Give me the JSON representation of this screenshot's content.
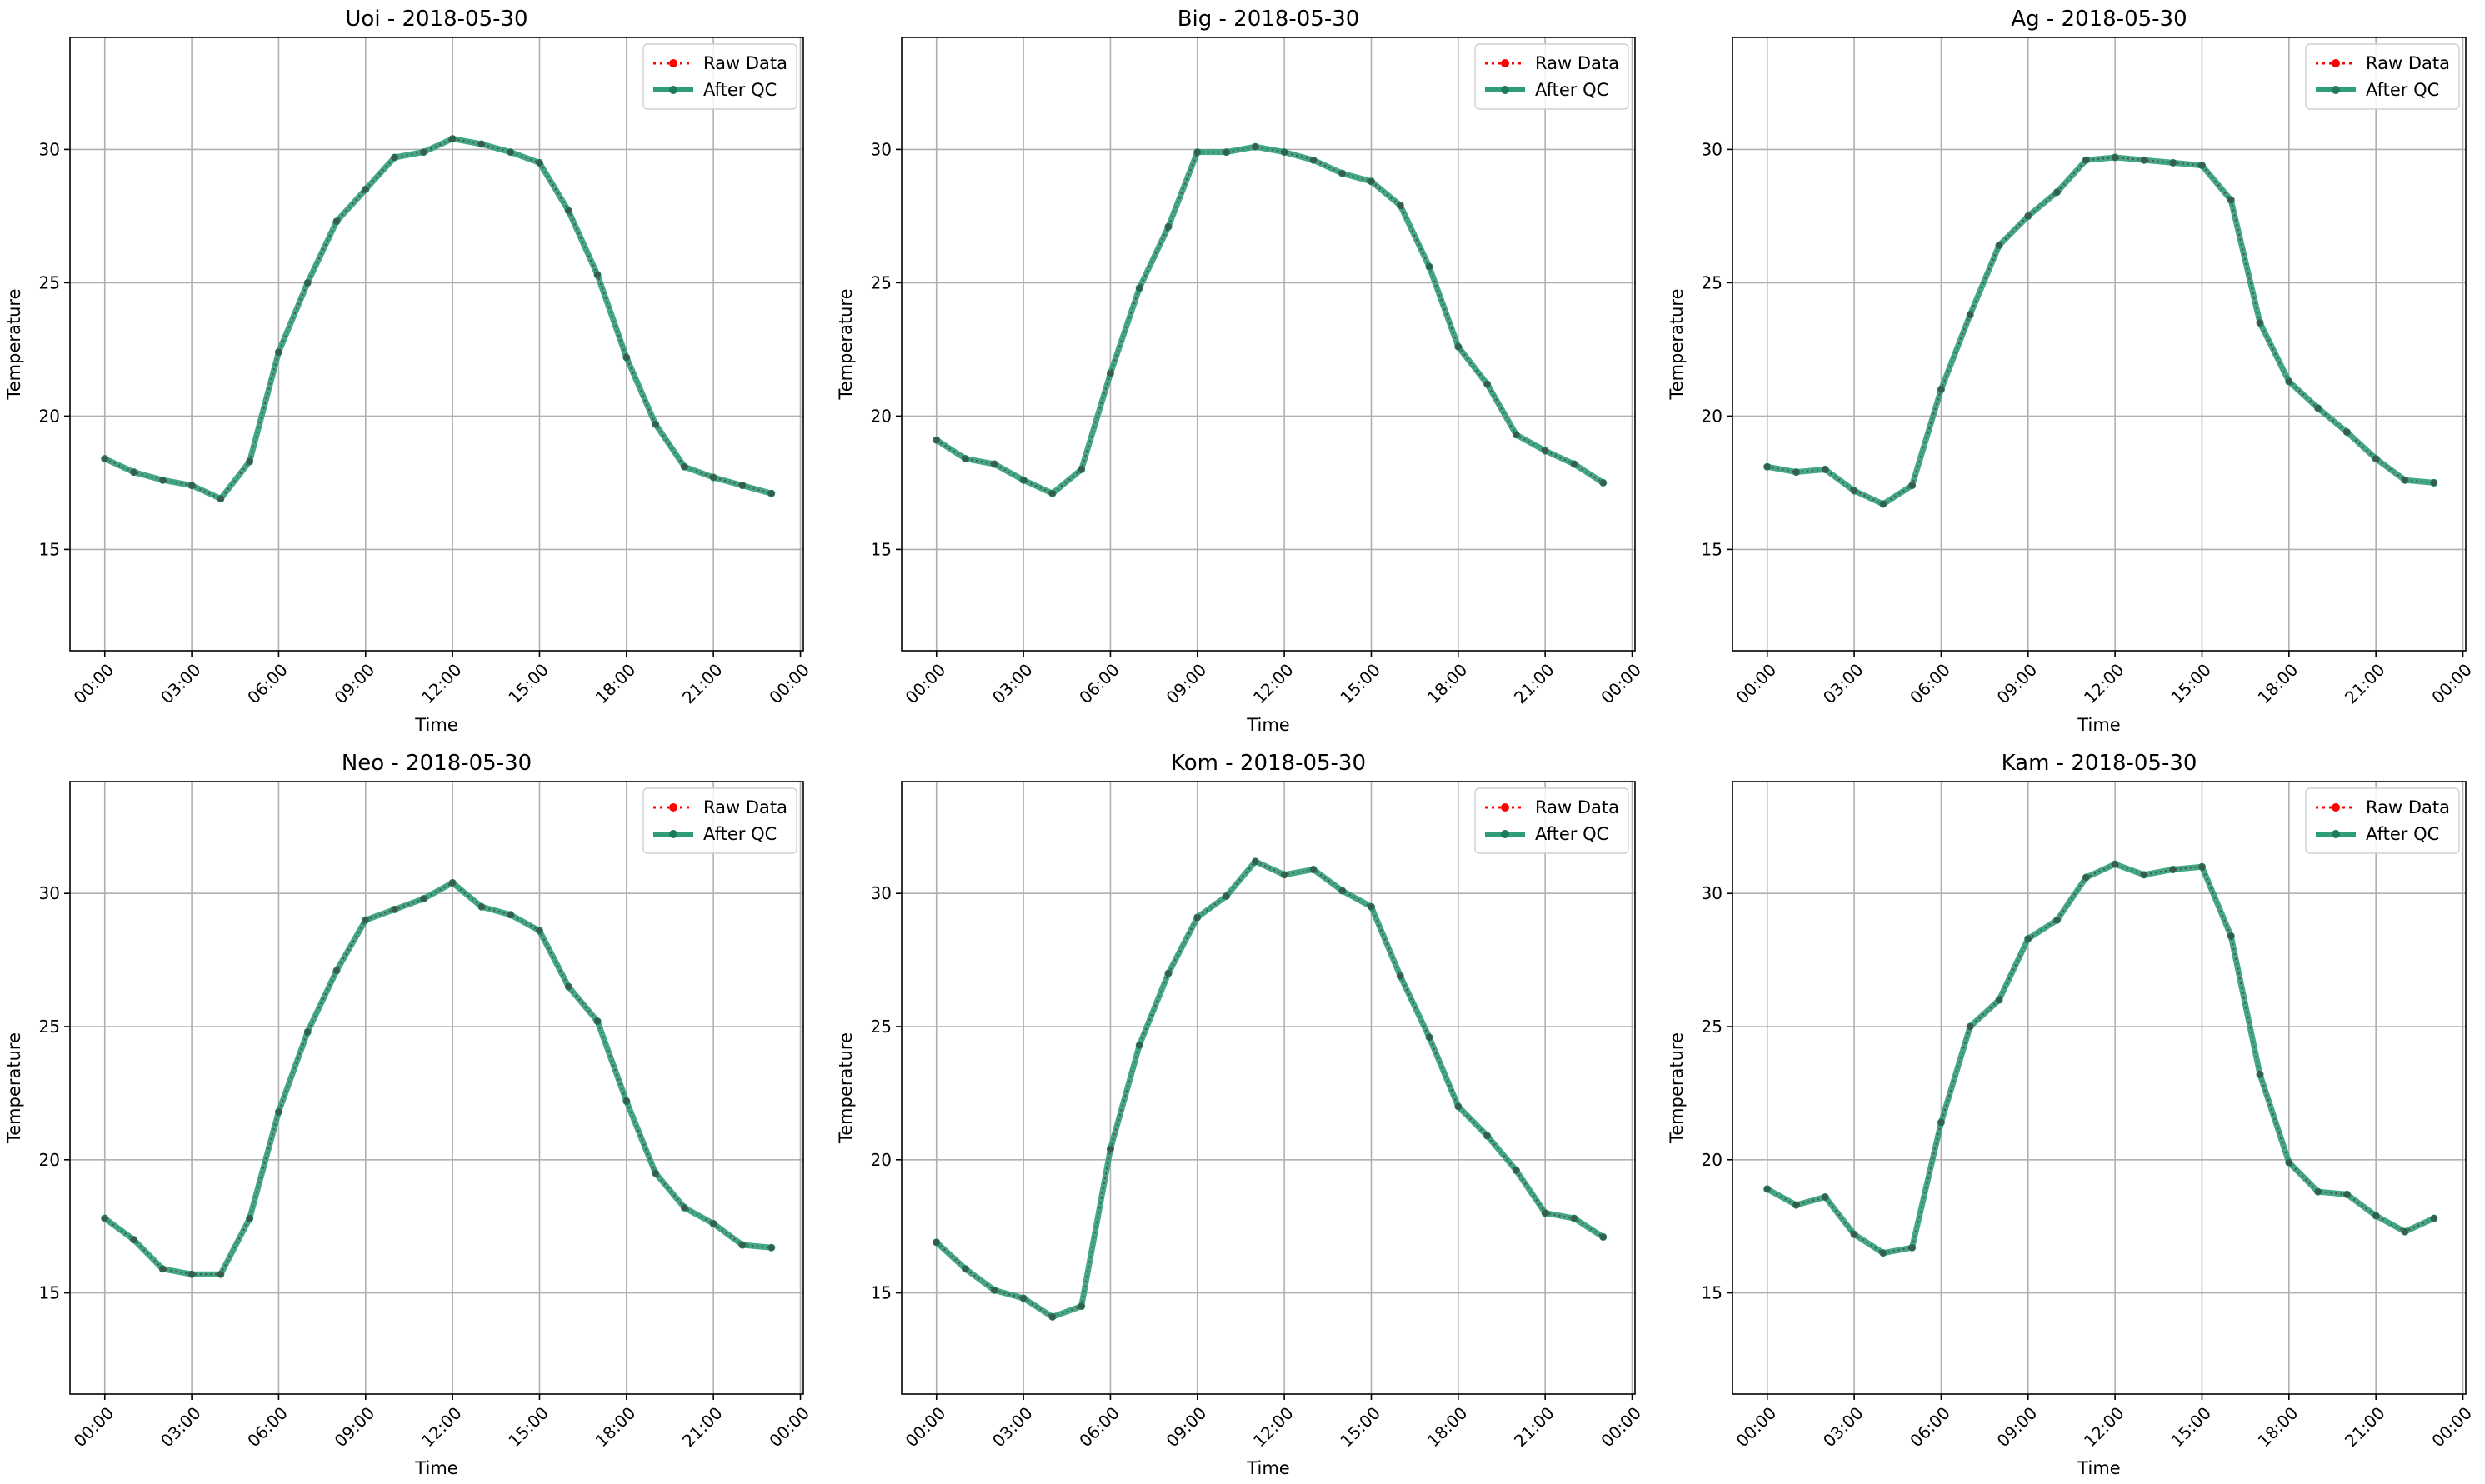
{
  "chart_data": [
    {
      "type": "line",
      "title": "Uoi - 2018-05-30",
      "xlabel": "Time",
      "ylabel": "Temperature",
      "x_ticks": [
        "00:00",
        "03:00",
        "06:00",
        "09:00",
        "12:00",
        "15:00",
        "18:00",
        "21:00",
        "00:00"
      ],
      "y_ticks": [
        15,
        20,
        25,
        30
      ],
      "ylim": [
        11.2,
        34.2
      ],
      "xlim_hours": [
        -1.2,
        24.1
      ],
      "grid": true,
      "legend_position": "upper-right",
      "hours": [
        0,
        1,
        2,
        3,
        4,
        5,
        6,
        7,
        8,
        9,
        10,
        11,
        12,
        13,
        14,
        15,
        16,
        17,
        18,
        19,
        20,
        21,
        22,
        23
      ],
      "series": [
        {
          "name": "Raw Data",
          "style": "dotted-markers",
          "color": "#ff0000",
          "values": [
            18.4,
            17.9,
            17.6,
            17.4,
            16.9,
            18.3,
            22.4,
            25.0,
            27.3,
            28.5,
            29.7,
            29.9,
            30.4,
            30.2,
            29.9,
            29.5,
            27.7,
            25.3,
            22.2,
            19.7,
            18.1,
            17.7,
            17.4,
            17.1
          ]
        },
        {
          "name": "After QC",
          "style": "solid-markers",
          "color": "#2f9e78",
          "values": [
            18.4,
            17.9,
            17.6,
            17.4,
            16.9,
            18.3,
            22.4,
            25.0,
            27.3,
            28.5,
            29.7,
            29.9,
            30.4,
            30.2,
            29.9,
            29.5,
            27.7,
            25.3,
            22.2,
            19.7,
            18.1,
            17.7,
            17.4,
            17.1
          ]
        }
      ]
    },
    {
      "type": "line",
      "title": "Big - 2018-05-30",
      "xlabel": "Time",
      "ylabel": "Temperature",
      "x_ticks": [
        "00:00",
        "03:00",
        "06:00",
        "09:00",
        "12:00",
        "15:00",
        "18:00",
        "21:00",
        "00:00"
      ],
      "y_ticks": [
        15,
        20,
        25,
        30
      ],
      "ylim": [
        11.2,
        34.2
      ],
      "xlim_hours": [
        -1.2,
        24.1
      ],
      "grid": true,
      "legend_position": "upper-right",
      "hours": [
        0,
        1,
        2,
        3,
        4,
        5,
        6,
        7,
        8,
        9,
        10,
        11,
        12,
        13,
        14,
        15,
        16,
        17,
        18,
        19,
        20,
        21,
        22,
        23
      ],
      "series": [
        {
          "name": "Raw Data",
          "style": "dotted-markers",
          "color": "#ff0000",
          "values": [
            19.1,
            18.4,
            18.2,
            17.6,
            17.1,
            18.0,
            21.6,
            24.8,
            27.1,
            29.9,
            29.9,
            30.1,
            29.9,
            29.6,
            29.1,
            28.8,
            27.9,
            25.6,
            22.6,
            21.2,
            19.3,
            18.7,
            18.2,
            17.5
          ]
        },
        {
          "name": "After QC",
          "style": "solid-markers",
          "color": "#2f9e78",
          "values": [
            19.1,
            18.4,
            18.2,
            17.6,
            17.1,
            18.0,
            21.6,
            24.8,
            27.1,
            29.9,
            29.9,
            30.1,
            29.9,
            29.6,
            29.1,
            28.8,
            27.9,
            25.6,
            22.6,
            21.2,
            19.3,
            18.7,
            18.2,
            17.5
          ]
        }
      ]
    },
    {
      "type": "line",
      "title": "Ag - 2018-05-30",
      "xlabel": "Time",
      "ylabel": "Temperature",
      "x_ticks": [
        "00:00",
        "03:00",
        "06:00",
        "09:00",
        "12:00",
        "15:00",
        "18:00",
        "21:00",
        "00:00"
      ],
      "y_ticks": [
        15,
        20,
        25,
        30
      ],
      "ylim": [
        11.2,
        34.2
      ],
      "xlim_hours": [
        -1.2,
        24.1
      ],
      "grid": true,
      "legend_position": "upper-right",
      "hours": [
        0,
        1,
        2,
        3,
        4,
        5,
        6,
        7,
        8,
        9,
        10,
        11,
        12,
        13,
        14,
        15,
        16,
        17,
        18,
        19,
        20,
        21,
        22,
        23
      ],
      "series": [
        {
          "name": "Raw Data",
          "style": "dotted-markers",
          "color": "#ff0000",
          "values": [
            18.1,
            17.9,
            18.0,
            17.2,
            16.7,
            17.4,
            21.0,
            23.8,
            26.4,
            27.5,
            28.4,
            29.6,
            29.7,
            29.6,
            29.5,
            29.4,
            28.1,
            23.5,
            21.3,
            20.3,
            19.4,
            18.4,
            17.6,
            17.5
          ]
        },
        {
          "name": "After QC",
          "style": "solid-markers",
          "color": "#2f9e78",
          "values": [
            18.1,
            17.9,
            18.0,
            17.2,
            16.7,
            17.4,
            21.0,
            23.8,
            26.4,
            27.5,
            28.4,
            29.6,
            29.7,
            29.6,
            29.5,
            29.4,
            28.1,
            23.5,
            21.3,
            20.3,
            19.4,
            18.4,
            17.6,
            17.5
          ]
        }
      ]
    },
    {
      "type": "line",
      "title": "Neo - 2018-05-30",
      "xlabel": "Time",
      "ylabel": "Temperature",
      "x_ticks": [
        "00:00",
        "03:00",
        "06:00",
        "09:00",
        "12:00",
        "15:00",
        "18:00",
        "21:00",
        "00:00"
      ],
      "y_ticks": [
        15,
        20,
        25,
        30
      ],
      "ylim": [
        11.2,
        34.2
      ],
      "xlim_hours": [
        -1.2,
        24.1
      ],
      "grid": true,
      "legend_position": "upper-right",
      "hours": [
        0,
        1,
        2,
        3,
        4,
        5,
        6,
        7,
        8,
        9,
        10,
        11,
        12,
        13,
        14,
        15,
        16,
        17,
        18,
        19,
        20,
        21,
        22,
        23
      ],
      "series": [
        {
          "name": "Raw Data",
          "style": "dotted-markers",
          "color": "#ff0000",
          "values": [
            17.8,
            17.0,
            15.9,
            15.7,
            15.7,
            17.8,
            21.8,
            24.8,
            27.1,
            29.0,
            29.4,
            29.8,
            30.4,
            29.5,
            29.2,
            28.6,
            26.5,
            25.2,
            22.2,
            19.5,
            18.2,
            17.6,
            16.8,
            16.7
          ]
        },
        {
          "name": "After QC",
          "style": "solid-markers",
          "color": "#2f9e78",
          "values": [
            17.8,
            17.0,
            15.9,
            15.7,
            15.7,
            17.8,
            21.8,
            24.8,
            27.1,
            29.0,
            29.4,
            29.8,
            30.4,
            29.5,
            29.2,
            28.6,
            26.5,
            25.2,
            22.2,
            19.5,
            18.2,
            17.6,
            16.8,
            16.7
          ]
        }
      ]
    },
    {
      "type": "line",
      "title": "Kom - 2018-05-30",
      "xlabel": "Time",
      "ylabel": "Temperature",
      "x_ticks": [
        "00:00",
        "03:00",
        "06:00",
        "09:00",
        "12:00",
        "15:00",
        "18:00",
        "21:00",
        "00:00"
      ],
      "y_ticks": [
        15,
        20,
        25,
        30
      ],
      "ylim": [
        11.2,
        34.2
      ],
      "xlim_hours": [
        -1.2,
        24.1
      ],
      "grid": true,
      "legend_position": "upper-right",
      "hours": [
        0,
        1,
        2,
        3,
        4,
        5,
        6,
        7,
        8,
        9,
        10,
        11,
        12,
        13,
        14,
        15,
        16,
        17,
        18,
        19,
        20,
        21,
        22,
        23
      ],
      "series": [
        {
          "name": "Raw Data",
          "style": "dotted-markers",
          "color": "#ff0000",
          "values": [
            16.9,
            15.9,
            15.1,
            14.8,
            14.1,
            14.5,
            20.4,
            24.3,
            27.0,
            29.1,
            29.9,
            31.2,
            30.7,
            30.9,
            30.1,
            29.5,
            26.9,
            24.6,
            22.0,
            20.9,
            19.6,
            18.0,
            17.8,
            17.1
          ]
        },
        {
          "name": "After QC",
          "style": "solid-markers",
          "color": "#2f9e78",
          "values": [
            16.9,
            15.9,
            15.1,
            14.8,
            14.1,
            14.5,
            20.4,
            24.3,
            27.0,
            29.1,
            29.9,
            31.2,
            30.7,
            30.9,
            30.1,
            29.5,
            26.9,
            24.6,
            22.0,
            20.9,
            19.6,
            18.0,
            17.8,
            17.1
          ]
        }
      ]
    },
    {
      "type": "line",
      "title": "Kam - 2018-05-30",
      "xlabel": "Time",
      "ylabel": "Temperature",
      "x_ticks": [
        "00:00",
        "03:00",
        "06:00",
        "09:00",
        "12:00",
        "15:00",
        "18:00",
        "21:00",
        "00:00"
      ],
      "y_ticks": [
        15,
        20,
        25,
        30
      ],
      "ylim": [
        11.2,
        34.2
      ],
      "xlim_hours": [
        -1.2,
        24.1
      ],
      "grid": true,
      "legend_position": "upper-right",
      "hours": [
        0,
        1,
        2,
        3,
        4,
        5,
        6,
        7,
        8,
        9,
        10,
        11,
        12,
        13,
        14,
        15,
        16,
        17,
        18,
        19,
        20,
        21,
        22,
        23
      ],
      "series": [
        {
          "name": "Raw Data",
          "style": "dotted-markers",
          "color": "#ff0000",
          "values": [
            18.9,
            18.3,
            18.6,
            17.2,
            16.5,
            16.7,
            21.4,
            25.0,
            26.0,
            28.3,
            29.0,
            30.6,
            31.1,
            30.7,
            30.9,
            31.0,
            28.4,
            23.2,
            19.9,
            18.8,
            18.7,
            17.9,
            17.3,
            17.8
          ]
        },
        {
          "name": "After QC",
          "style": "solid-markers",
          "color": "#2f9e78",
          "values": [
            18.9,
            18.3,
            18.6,
            17.2,
            16.5,
            16.7,
            21.4,
            25.0,
            26.0,
            28.3,
            29.0,
            30.6,
            31.1,
            30.7,
            30.9,
            31.0,
            28.4,
            23.2,
            19.9,
            18.8,
            18.7,
            17.9,
            17.3,
            17.8
          ]
        }
      ]
    }
  ]
}
